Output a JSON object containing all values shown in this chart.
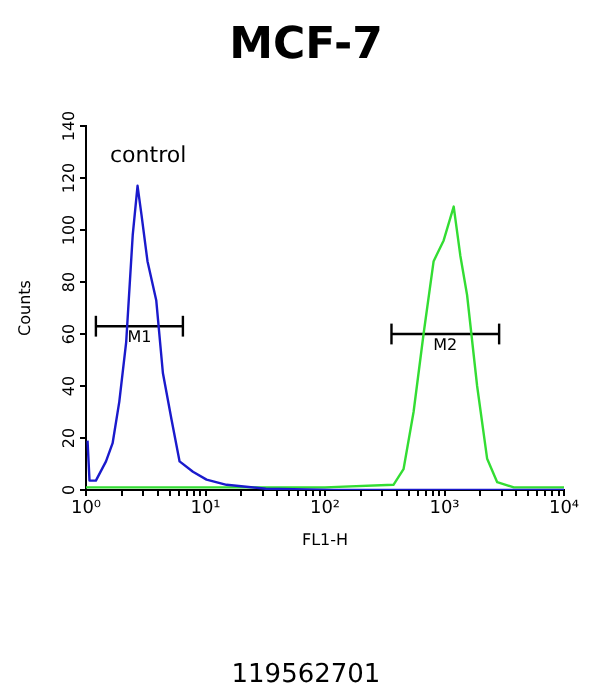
{
  "chart_data": {
    "type": "line",
    "title": "MCF-7",
    "xlabel": "FL1-H",
    "ylabel": "Counts",
    "log": "x",
    "grid": false,
    "legend": false,
    "marker": "none",
    "line_style": "solid",
    "xlim": [
      1,
      10000
    ],
    "ylim": [
      0,
      140
    ],
    "xticks": [
      {
        "value": 1,
        "label": "10⁰"
      },
      {
        "value": 2,
        "label": null
      },
      {
        "value": 3,
        "label": null
      },
      {
        "value": 4,
        "label": null
      },
      {
        "value": 5,
        "label": null
      },
      {
        "value": 6,
        "label": null
      },
      {
        "value": 7,
        "label": null
      },
      {
        "value": 8,
        "label": null
      },
      {
        "value": 9,
        "label": null
      },
      {
        "value": 10,
        "label": "10¹"
      },
      {
        "value": 20,
        "label": null
      },
      {
        "value": 30,
        "label": null
      },
      {
        "value": 40,
        "label": null
      },
      {
        "value": 50,
        "label": null
      },
      {
        "value": 60,
        "label": null
      },
      {
        "value": 70,
        "label": null
      },
      {
        "value": 80,
        "label": null
      },
      {
        "value": 90,
        "label": null
      },
      {
        "value": 100,
        "label": "10²"
      },
      {
        "value": 200,
        "label": null
      },
      {
        "value": 300,
        "label": null
      },
      {
        "value": 400,
        "label": null
      },
      {
        "value": 500,
        "label": null
      },
      {
        "value": 600,
        "label": null
      },
      {
        "value": 700,
        "label": null
      },
      {
        "value": 800,
        "label": null
      },
      {
        "value": 900,
        "label": null
      },
      {
        "value": 1000,
        "label": "10³"
      },
      {
        "value": 2000,
        "label": null
      },
      {
        "value": 3000,
        "label": null
      },
      {
        "value": 4000,
        "label": null
      },
      {
        "value": 5000,
        "label": null
      },
      {
        "value": 6000,
        "label": null
      },
      {
        "value": 7000,
        "label": null
      },
      {
        "value": 8000,
        "label": null
      },
      {
        "value": 9000,
        "label": null
      },
      {
        "value": 10000,
        "label": "10⁴"
      }
    ],
    "yticks": [
      0,
      20,
      40,
      60,
      80,
      100,
      120,
      140
    ],
    "series": [
      {
        "color": "#1a1acc",
        "x": [
          1.03,
          1.07,
          1.21,
          1.47,
          1.67,
          1.9,
          2.17,
          2.46,
          2.7,
          2.91,
          3.27,
          3.87,
          4.4,
          5.2,
          6.07,
          7.85,
          10.2,
          15,
          32,
          118,
          10000
        ],
        "values": [
          19,
          3.6,
          3.6,
          11,
          18,
          34,
          57,
          98,
          117,
          106,
          88,
          73,
          45,
          27,
          11,
          7,
          4,
          2,
          0.5,
          0,
          0
        ]
      },
      {
        "color": "#33dd33",
        "x": [
          1,
          100,
          374,
          454,
          551,
          668,
          811,
          984,
          1194,
          1358,
          1545,
          1875,
          2275,
          2761,
          3802,
          10000
        ],
        "values": [
          1,
          1,
          2,
          8,
          30,
          60,
          88,
          96,
          109,
          90,
          75,
          40,
          12,
          3,
          1,
          1
        ]
      },
      {
        "name": "M1",
        "color": "#000000",
        "x": [
          1.21,
          6.47
        ],
        "values": [
          63,
          63
        ],
        "errors": [
          4,
          4
        ]
      },
      {
        "name": "M2",
        "color": "#000000",
        "x": [
          360,
          2865
        ],
        "values": [
          60,
          60
        ],
        "errors": [
          4,
          4
        ]
      }
    ],
    "annotations": [
      "control",
      "119562701"
    ]
  }
}
